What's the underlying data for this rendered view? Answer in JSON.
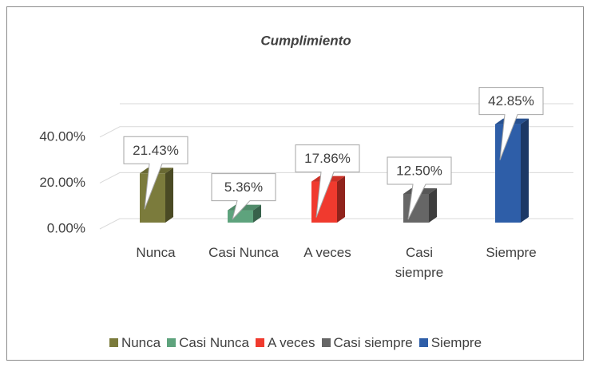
{
  "chart_data": {
    "type": "bar",
    "title": "Cumplimiento",
    "categories": [
      "Nunca",
      "Casi Nunca",
      "A veces",
      "Casi siempre",
      "Siempre"
    ],
    "values": [
      21.43,
      5.36,
      17.86,
      12.5,
      42.85
    ],
    "value_labels": [
      "21.43%",
      "5.36%",
      "17.86%",
      "12.50%",
      "42.85%"
    ],
    "colors": [
      "#7b7b3c",
      "#5ea37d",
      "#f03a2e",
      "#666666",
      "#2e5ea8"
    ],
    "ylim": [
      0,
      50
    ],
    "yticks": [
      {
        "value": 0,
        "label": "0.00%"
      },
      {
        "value": 20,
        "label": "20.00%"
      },
      {
        "value": 40,
        "label": "40.00%"
      }
    ],
    "grid": true,
    "legend": "bottom"
  }
}
